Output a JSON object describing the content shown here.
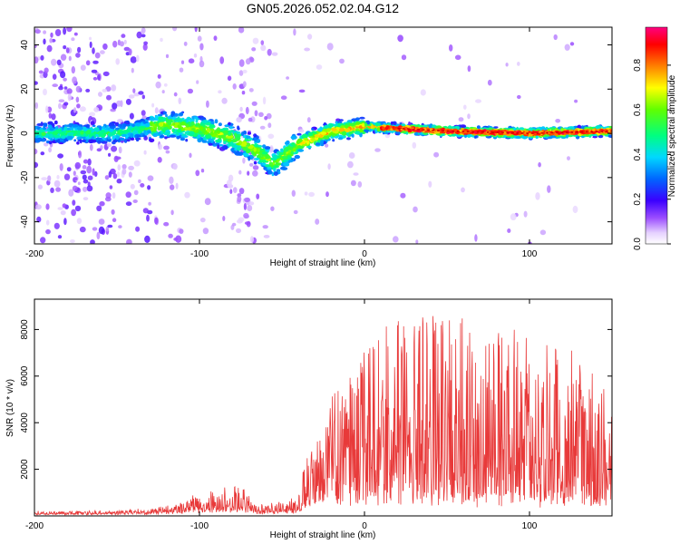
{
  "title": "GN05.2026.052.02.04.G12",
  "chart_data": [
    {
      "type": "heatmap",
      "xlabel": "Height of straight line (km)",
      "ylabel": "Frequency (Hz)",
      "xlim": [
        -200,
        150
      ],
      "ylim": [
        -50,
        48
      ],
      "xticks": [
        -200,
        -100,
        0,
        100
      ],
      "yticks": [
        -40,
        -20,
        0,
        20,
        40
      ],
      "colorbar": {
        "label": "Normalized spectral amplitude",
        "range": [
          0.0,
          0.97
        ],
        "ticks": [
          0.0,
          0.2,
          0.4,
          0.6,
          0.8
        ],
        "tick_labels": [
          "0.0",
          "0.2",
          "0.4",
          "0.6",
          "0.8"
        ]
      },
      "centerline": [
        {
          "x": -200,
          "y": 0
        },
        {
          "x": -150,
          "y": 0
        },
        {
          "x": -120,
          "y": 4
        },
        {
          "x": -100,
          "y": 2
        },
        {
          "x": -80,
          "y": -2
        },
        {
          "x": -65,
          "y": -8
        },
        {
          "x": -55,
          "y": -14
        },
        {
          "x": -40,
          "y": -5
        },
        {
          "x": -20,
          "y": 1
        },
        {
          "x": 0,
          "y": 3
        },
        {
          "x": 50,
          "y": 1
        },
        {
          "x": 100,
          "y": 0
        },
        {
          "x": 150,
          "y": 1
        }
      ]
    },
    {
      "type": "line",
      "xlabel": "Height of straight line (km)",
      "ylabel": "SNR (10 * v/v)",
      "xlim": [
        -200,
        150
      ],
      "ylim": [
        0,
        9300
      ],
      "xticks": [
        -200,
        -100,
        0,
        100
      ],
      "yticks": [
        2000,
        4000,
        6000,
        8000
      ],
      "color": "#e83a3a",
      "envelope": [
        {
          "x": -200,
          "base": 80,
          "amp": 120
        },
        {
          "x": -150,
          "base": 100,
          "amp": 150
        },
        {
          "x": -120,
          "base": 150,
          "amp": 300
        },
        {
          "x": -100,
          "base": 250,
          "amp": 700
        },
        {
          "x": -75,
          "base": 250,
          "amp": 1200
        },
        {
          "x": -65,
          "base": 150,
          "amp": 300
        },
        {
          "x": -40,
          "base": 200,
          "amp": 600
        },
        {
          "x": -35,
          "base": 600,
          "amp": 2500
        },
        {
          "x": -20,
          "base": 800,
          "amp": 4500
        },
        {
          "x": 0,
          "base": 900,
          "amp": 6500
        },
        {
          "x": 20,
          "base": 1000,
          "amp": 8200
        },
        {
          "x": 60,
          "base": 900,
          "amp": 8000
        },
        {
          "x": 100,
          "base": 800,
          "amp": 7000
        },
        {
          "x": 150,
          "base": 700,
          "amp": 5500
        }
      ]
    }
  ]
}
